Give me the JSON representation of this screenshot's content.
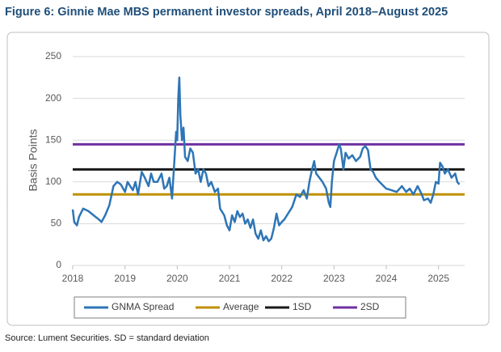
{
  "chart_data": {
    "type": "line",
    "title": "Figure 6: Ginnie Mae MBS permanent investor spreads, April 2018–August 2025",
    "y_label": "Basis Points",
    "source": "Source: Lument Securities. SD = standard deviation",
    "x": [
      2018.0,
      2018.03,
      2018.08,
      2018.12,
      2018.2,
      2018.3,
      2018.4,
      2018.5,
      2018.55,
      2018.62,
      2018.7,
      2018.78,
      2018.85,
      2018.92,
      2019.0,
      2019.05,
      2019.1,
      2019.15,
      2019.2,
      2019.25,
      2019.32,
      2019.38,
      2019.45,
      2019.5,
      2019.55,
      2019.62,
      2019.7,
      2019.75,
      2019.8,
      2019.85,
      2019.9,
      2019.95,
      2019.98,
      2020.0,
      2020.02,
      2020.04,
      2020.06,
      2020.09,
      2020.12,
      2020.15,
      2020.2,
      2020.25,
      2020.3,
      2020.35,
      2020.4,
      2020.45,
      2020.5,
      2020.55,
      2020.6,
      2020.65,
      2020.72,
      2020.78,
      2020.82,
      2020.9,
      2020.95,
      2021.0,
      2021.05,
      2021.1,
      2021.15,
      2021.2,
      2021.25,
      2021.3,
      2021.35,
      2021.4,
      2021.45,
      2021.5,
      2021.55,
      2021.6,
      2021.65,
      2021.7,
      2021.75,
      2021.8,
      2021.85,
      2021.9,
      2021.95,
      2022.0,
      2022.05,
      2022.12,
      2022.2,
      2022.28,
      2022.35,
      2022.42,
      2022.48,
      2022.53,
      2022.58,
      2022.62,
      2022.66,
      2022.72,
      2022.78,
      2022.85,
      2022.9,
      2022.93,
      2022.96,
      2023.0,
      2023.05,
      2023.1,
      2023.13,
      2023.18,
      2023.22,
      2023.28,
      2023.35,
      2023.42,
      2023.5,
      2023.55,
      2023.6,
      2023.65,
      2023.7,
      2023.75,
      2023.8,
      2023.87,
      2023.95,
      2024.0,
      2024.1,
      2024.2,
      2024.3,
      2024.38,
      2024.45,
      2024.52,
      2024.6,
      2024.68,
      2024.72,
      2024.8,
      2024.85,
      2024.9,
      2024.95,
      2025.0,
      2025.03,
      2025.08,
      2025.12,
      2025.18,
      2025.25,
      2025.32,
      2025.36,
      2025.4
    ],
    "series": [
      {
        "name": "GNMA Spread",
        "color": "#2e75b6",
        "values": [
          67,
          52,
          48,
          58,
          68,
          65,
          60,
          55,
          52,
          60,
          72,
          95,
          100,
          97,
          88,
          100,
          95,
          90,
          100,
          85,
          112,
          105,
          95,
          110,
          100,
          100,
          110,
          92,
          95,
          105,
          80,
          130,
          160,
          150,
          200,
          225,
          180,
          150,
          165,
          130,
          125,
          140,
          135,
          110,
          115,
          100,
          115,
          110,
          95,
          100,
          88,
          92,
          68,
          60,
          48,
          42,
          60,
          52,
          65,
          58,
          62,
          50,
          55,
          45,
          55,
          38,
          32,
          42,
          30,
          35,
          29,
          32,
          45,
          62,
          48,
          52,
          55,
          62,
          70,
          85,
          82,
          90,
          80,
          100,
          115,
          125,
          110,
          105,
          100,
          92,
          75,
          70,
          100,
          125,
          135,
          145,
          140,
          115,
          135,
          128,
          132,
          125,
          130,
          140,
          143,
          138,
          115,
          112,
          105,
          100,
          95,
          92,
          90,
          88,
          95,
          88,
          92,
          85,
          95,
          85,
          78,
          80,
          75,
          85,
          100,
          98,
          123,
          118,
          110,
          115,
          105,
          110,
          100,
          97
        ]
      }
    ],
    "reference_lines": [
      {
        "name": "Average",
        "color": "#bf9000",
        "value": 85
      },
      {
        "name": "1SD",
        "color": "#1a1a1a",
        "value": 115
      },
      {
        "name": "2SD",
        "color": "#7030a0",
        "value": 145
      }
    ],
    "xlim": [
      2018,
      2025.5
    ],
    "xticks": [
      2018,
      2019,
      2020,
      2021,
      2022,
      2023,
      2024,
      2025
    ],
    "ylim": [
      0,
      250
    ],
    "yticks": [
      0,
      50,
      100,
      150,
      200,
      250
    ],
    "grid": true
  }
}
